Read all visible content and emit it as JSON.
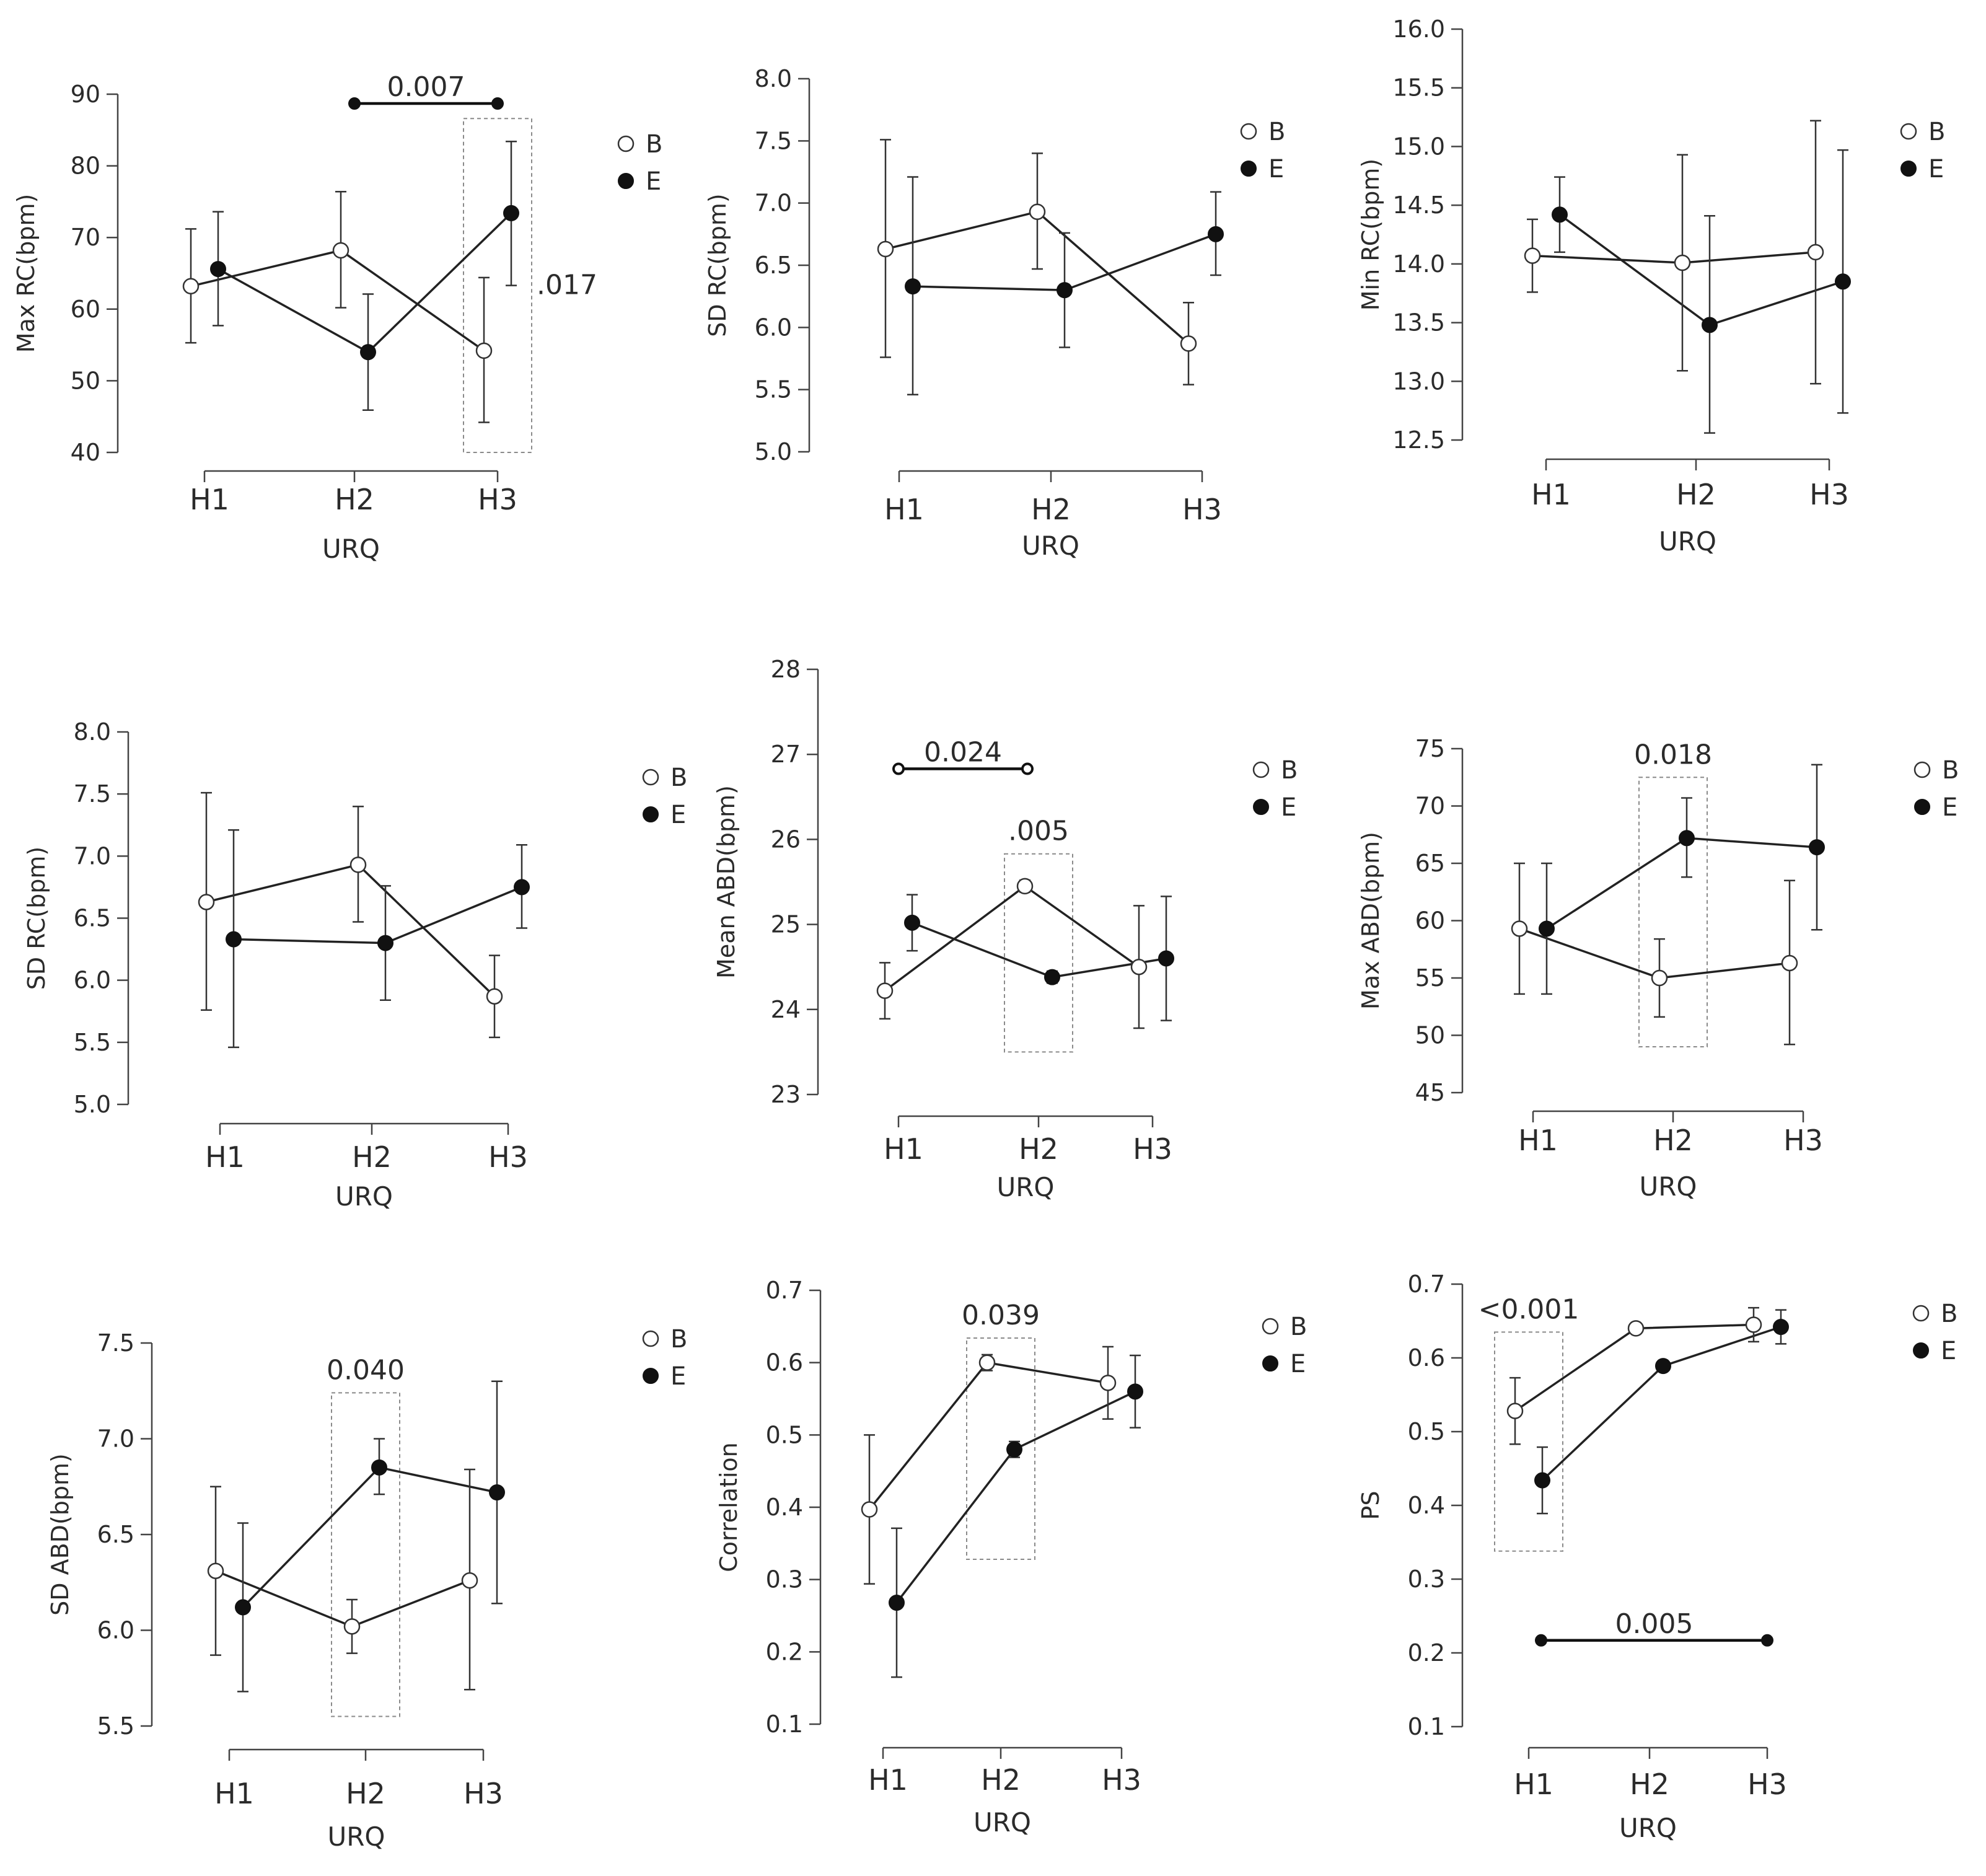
{
  "chart_data": [
    {
      "type": "line",
      "ylabel": "Max RC(bpm)",
      "xlabel": "URQ",
      "categories": [
        "H1",
        "H2",
        "H3"
      ],
      "ylim": [
        40,
        90
      ],
      "yticks": [
        "40",
        "50",
        "60",
        "70",
        "80",
        "90"
      ],
      "series": [
        {
          "name": "B",
          "marker": "open",
          "values": [
            63.2,
            68.2,
            54.2
          ],
          "lower": [
            55.3,
            60.2,
            44.2
          ],
          "upper": [
            71.2,
            76.4,
            64.4
          ]
        },
        {
          "name": "E",
          "marker": "filled",
          "values": [
            65.6,
            54.0,
            73.4
          ],
          "lower": [
            57.7,
            45.9,
            63.3
          ],
          "upper": [
            73.6,
            62.1,
            83.4
          ]
        }
      ],
      "brackets": [
        {
          "label": "0.007",
          "from": "H2",
          "to": "H3",
          "y": 88.7,
          "end": "filled"
        }
      ],
      "boxes": [
        {
          "label": ".017",
          "at": "H3",
          "ymin": 40,
          "ymax": 86.6,
          "label_side": "right"
        }
      ],
      "legend": [
        "B",
        "E"
      ]
    },
    {
      "type": "line",
      "ylabel": "SD RC(bpm)",
      "xlabel": "URQ",
      "categories": [
        "H1",
        "H2",
        "H3"
      ],
      "ylim": [
        5.0,
        8.0
      ],
      "yticks": [
        "5.0",
        "5.5",
        "6.0",
        "6.5",
        "7.0",
        "7.5",
        "8.0"
      ],
      "series": [
        {
          "name": "B",
          "marker": "open",
          "values": [
            6.63,
            6.93,
            5.87
          ],
          "lower": [
            5.76,
            6.47,
            5.54
          ],
          "upper": [
            7.51,
            7.4,
            6.2
          ]
        },
        {
          "name": "E",
          "marker": "filled",
          "values": [
            6.33,
            6.3,
            6.75
          ],
          "lower": [
            5.46,
            5.84,
            6.42
          ],
          "upper": [
            7.21,
            6.76,
            7.09
          ]
        }
      ],
      "brackets": [],
      "boxes": [],
      "legend": [
        "B",
        "E"
      ]
    },
    {
      "type": "line",
      "ylabel": "Min RC(bpm)",
      "xlabel": "URQ",
      "categories": [
        "H1",
        "H2",
        "H3"
      ],
      "ylim": [
        12.5,
        16.0
      ],
      "yticks": [
        "12.5",
        "13.0",
        "13.5",
        "14.0",
        "14.5",
        "15.0",
        "15.5",
        "16.0"
      ],
      "series": [
        {
          "name": "B",
          "marker": "open",
          "values": [
            14.07,
            14.01,
            14.1
          ],
          "lower": [
            13.76,
            13.09,
            12.98
          ],
          "upper": [
            14.38,
            14.93,
            15.22
          ]
        },
        {
          "name": "E",
          "marker": "filled",
          "values": [
            14.42,
            13.48,
            13.85
          ],
          "lower": [
            14.1,
            12.56,
            12.73
          ],
          "upper": [
            14.74,
            14.41,
            14.97
          ]
        }
      ],
      "brackets": [],
      "boxes": [],
      "legend": [
        "B",
        "E"
      ]
    },
    {
      "type": "line",
      "ylabel": "SD RC(bpm)",
      "xlabel": "URQ",
      "categories": [
        "H1",
        "H2",
        "H3"
      ],
      "ylim": [
        5.0,
        8.0
      ],
      "yticks": [
        "5.0",
        "5.5",
        "6.0",
        "6.5",
        "7.0",
        "7.5",
        "8.0"
      ],
      "series": [
        {
          "name": "B",
          "marker": "open",
          "values": [
            6.63,
            6.93,
            5.87
          ],
          "lower": [
            5.76,
            6.47,
            5.54
          ],
          "upper": [
            7.51,
            7.4,
            6.2
          ]
        },
        {
          "name": "E",
          "marker": "filled",
          "values": [
            6.33,
            6.3,
            6.75
          ],
          "lower": [
            5.46,
            5.84,
            6.42
          ],
          "upper": [
            7.21,
            6.76,
            7.09
          ]
        }
      ],
      "brackets": [],
      "boxes": [],
      "legend": [
        "B",
        "E"
      ]
    },
    {
      "type": "line",
      "ylabel": "Mean ABD(bpm)",
      "xlabel": "URQ",
      "categories": [
        "H1",
        "H2",
        "H3"
      ],
      "ylim": [
        23,
        28
      ],
      "yticks": [
        "23",
        "24",
        "25",
        "26",
        "27",
        "28"
      ],
      "series": [
        {
          "name": "B",
          "marker": "open",
          "values": [
            24.22,
            25.45,
            24.5
          ],
          "lower": [
            23.89,
            25.38,
            23.78
          ],
          "upper": [
            24.55,
            25.52,
            25.22
          ]
        },
        {
          "name": "E",
          "marker": "filled",
          "values": [
            25.02,
            24.38,
            24.6
          ],
          "lower": [
            24.69,
            24.31,
            23.87
          ],
          "upper": [
            25.35,
            24.45,
            25.33
          ]
        }
      ],
      "brackets": [
        {
          "label": "0.024",
          "from": "H1",
          "to": "H2",
          "y": 26.83,
          "end": "open"
        }
      ],
      "boxes": [
        {
          "label": ".005",
          "at": "H2",
          "ymin": 23.5,
          "ymax": 25.83,
          "label_side": "top"
        }
      ],
      "legend": [
        "B",
        "E"
      ]
    },
    {
      "type": "line",
      "ylabel": "Max ABD(bpm)",
      "xlabel": "URQ",
      "categories": [
        "H1",
        "H2",
        "H3"
      ],
      "ylim": [
        45,
        75
      ],
      "yticks": [
        "45",
        "50",
        "55",
        "60",
        "65",
        "70",
        "75"
      ],
      "series": [
        {
          "name": "B",
          "marker": "open",
          "values": [
            59.3,
            55.0,
            56.3
          ],
          "lower": [
            53.6,
            51.6,
            49.2
          ],
          "upper": [
            65.0,
            58.4,
            63.5
          ]
        },
        {
          "name": "E",
          "marker": "filled",
          "values": [
            59.3,
            67.2,
            66.4
          ],
          "lower": [
            53.6,
            63.8,
            59.2
          ],
          "upper": [
            65.0,
            70.7,
            73.6
          ]
        }
      ],
      "brackets": [],
      "boxes": [
        {
          "label": "0.018",
          "at": "H2",
          "ymin": 49.0,
          "ymax": 72.5,
          "label_side": "top"
        }
      ],
      "legend": [
        "B",
        "E"
      ]
    },
    {
      "type": "line",
      "ylabel": "SD ABD(bpm)",
      "xlabel": "URQ",
      "categories": [
        "H1",
        "H2",
        "H3"
      ],
      "ylim": [
        5.5,
        7.5
      ],
      "yticks": [
        "5.5",
        "6.0",
        "6.5",
        "7.0",
        "7.5"
      ],
      "series": [
        {
          "name": "B",
          "marker": "open",
          "values": [
            6.31,
            6.02,
            6.26
          ],
          "lower": [
            5.87,
            5.88,
            5.69
          ],
          "upper": [
            6.75,
            6.16,
            6.84
          ]
        },
        {
          "name": "E",
          "marker": "filled",
          "values": [
            6.12,
            6.85,
            6.72
          ],
          "lower": [
            5.68,
            6.71,
            6.14
          ],
          "upper": [
            6.56,
            7.0,
            7.3
          ]
        }
      ],
      "brackets": [],
      "boxes": [
        {
          "label": "0.040",
          "at": "H2",
          "ymin": 5.55,
          "ymax": 7.24,
          "label_side": "top"
        }
      ],
      "legend": [
        "B",
        "E"
      ]
    },
    {
      "type": "line",
      "ylabel": "Correlation",
      "xlabel": "URQ",
      "categories": [
        "H1",
        "H2",
        "H3"
      ],
      "ylim": [
        0.1,
        0.7
      ],
      "yticks": [
        "0.1",
        "0.2",
        "0.3",
        "0.4",
        "0.5",
        "0.6",
        "0.7"
      ],
      "series": [
        {
          "name": "B",
          "marker": "open",
          "values": [
            0.397,
            0.6,
            0.572
          ],
          "lower": [
            0.294,
            0.589,
            0.522
          ],
          "upper": [
            0.5,
            0.611,
            0.622
          ]
        },
        {
          "name": "E",
          "marker": "filled",
          "values": [
            0.268,
            0.48,
            0.56
          ],
          "lower": [
            0.165,
            0.469,
            0.51
          ],
          "upper": [
            0.371,
            0.491,
            0.61
          ]
        }
      ],
      "brackets": [],
      "boxes": [
        {
          "label": "0.039",
          "at": "H2",
          "ymin": 0.328,
          "ymax": 0.634,
          "label_side": "top"
        }
      ],
      "legend": [
        "B",
        "E"
      ]
    },
    {
      "type": "line",
      "ylabel": "PS",
      "xlabel": "URQ",
      "categories": [
        "H1",
        "H2",
        "H3"
      ],
      "ylim": [
        0.1,
        0.7
      ],
      "yticks": [
        "0.1",
        "0.2",
        "0.3",
        "0.4",
        "0.5",
        "0.6",
        "0.7"
      ],
      "series": [
        {
          "name": "B",
          "marker": "open",
          "values": [
            0.528,
            0.64,
            0.645
          ],
          "lower": [
            0.483,
            0.638,
            0.622
          ],
          "upper": [
            0.573,
            0.642,
            0.668
          ]
        },
        {
          "name": "E",
          "marker": "filled",
          "values": [
            0.434,
            0.589,
            0.642
          ],
          "lower": [
            0.389,
            0.587,
            0.619
          ],
          "upper": [
            0.479,
            0.591,
            0.665
          ]
        }
      ],
      "brackets": [
        {
          "label": "0.005",
          "from": "H1",
          "to": "H3",
          "y": 0.217,
          "end": "filled"
        }
      ],
      "boxes": [
        {
          "label": "<0.001",
          "at": "H1",
          "ymin": 0.338,
          "ymax": 0.635,
          "label_side": "top"
        }
      ],
      "legend": [
        "B",
        "E"
      ]
    }
  ]
}
